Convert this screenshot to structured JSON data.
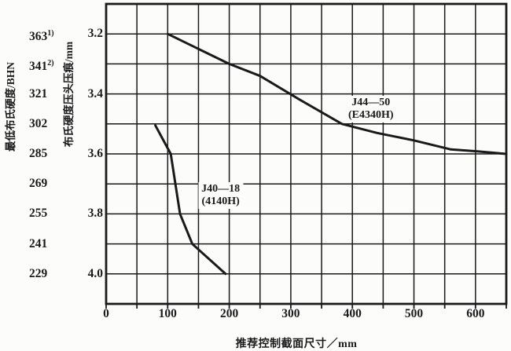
{
  "figure": {
    "background": "#fcfcfa",
    "ink": "#1a1a1a"
  },
  "chart_data": {
    "type": "line",
    "xlabel": "推荐控制截面尺寸／mm",
    "ylabel_outer": "最低布氏硬度/BHN",
    "ylabel_inner": "布氏硬度压头压痕/mm",
    "xlim": [
      0,
      650
    ],
    "ylim": [
      3.1,
      4.1
    ],
    "y_axis_direction": "indentation increases downward",
    "grid": {
      "x_step": 50,
      "y_step": 0.1,
      "on": true
    },
    "x_ticks": [
      "0",
      "100",
      "200",
      "300",
      "400",
      "500",
      "600"
    ],
    "y_ticks_indent": [
      "3.2",
      "3.4",
      "3.6",
      "3.8",
      "4.0"
    ],
    "y_ticks_bhn": [
      {
        "value": "363",
        "sup": "1)",
        "indent": 3.2
      },
      {
        "value": "341",
        "sup": "2)",
        "indent": 3.3
      },
      {
        "value": "321",
        "sup": "",
        "indent": 3.4
      },
      {
        "value": "302",
        "sup": "",
        "indent": 3.5
      },
      {
        "value": "285",
        "sup": "",
        "indent": 3.6
      },
      {
        "value": "269",
        "sup": "",
        "indent": 3.7
      },
      {
        "value": "255",
        "sup": "",
        "indent": 3.8
      },
      {
        "value": "241",
        "sup": "",
        "indent": 3.9
      },
      {
        "value": "229",
        "sup": "",
        "indent": 4.0
      }
    ],
    "series": [
      {
        "id": "j44-50",
        "name": "J44—50",
        "grade": "(E4340H)",
        "label_at": [
          430,
          3.45
        ],
        "points": [
          [
            100,
            3.2
          ],
          [
            150,
            3.25
          ],
          [
            200,
            3.3
          ],
          [
            250,
            3.34
          ],
          [
            315,
            3.42
          ],
          [
            383,
            3.5
          ],
          [
            440,
            3.53
          ],
          [
            500,
            3.555
          ],
          [
            560,
            3.585
          ],
          [
            605,
            3.592
          ],
          [
            650,
            3.6
          ]
        ]
      },
      {
        "id": "j40-18",
        "name": "J40—18",
        "grade": "(4140H)",
        "label_at": [
          186,
          3.74
        ],
        "points": [
          [
            80,
            3.505
          ],
          [
            105,
            3.6
          ],
          [
            120,
            3.8
          ],
          [
            140,
            3.9
          ],
          [
            194,
            4.0
          ]
        ]
      }
    ]
  }
}
